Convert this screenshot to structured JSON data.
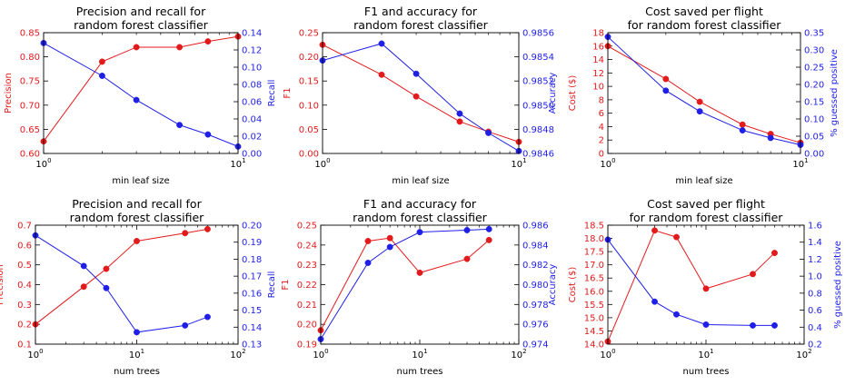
{
  "colors": {
    "left": "#e31a1c",
    "right": "#1f1fe8",
    "axis": "#000000"
  },
  "chart_data": [
    {
      "type": "line",
      "title": [
        "Precision and recall for",
        "random forest classifier"
      ],
      "xlabel": "min leaf size",
      "xscale": "log",
      "xlim": [
        1,
        10
      ],
      "xticks": [
        {
          "v": 1,
          "base": "10",
          "exp": "0"
        },
        {
          "v": 10,
          "base": "10",
          "exp": "1"
        }
      ],
      "y_left": {
        "label": "Precision",
        "lim": [
          0.6,
          0.85
        ],
        "ticks": [
          "0.60",
          "0.65",
          "0.70",
          "0.75",
          "0.80",
          "0.85"
        ]
      },
      "y_right": {
        "label": "Recall",
        "lim": [
          0.0,
          0.14
        ],
        "ticks": [
          "0.00",
          "0.02",
          "0.04",
          "0.06",
          "0.08",
          "0.10",
          "0.12",
          "0.14"
        ]
      },
      "series": [
        {
          "axis": "left",
          "x": [
            1,
            2,
            3,
            5,
            7,
            10
          ],
          "y": [
            0.625,
            0.79,
            0.82,
            0.82,
            0.832,
            0.842
          ]
        },
        {
          "axis": "right",
          "x": [
            1,
            2,
            3,
            5,
            7,
            10
          ],
          "y": [
            0.128,
            0.09,
            0.062,
            0.033,
            0.022,
            0.008
          ]
        }
      ]
    },
    {
      "type": "line",
      "title": [
        "F1 and accuracy for",
        "random forest classifier"
      ],
      "xlabel": "min leaf size",
      "xscale": "log",
      "xlim": [
        1,
        10
      ],
      "xticks": [
        {
          "v": 1,
          "base": "10",
          "exp": "0"
        },
        {
          "v": 10,
          "base": "10",
          "exp": "1"
        }
      ],
      "y_left": {
        "label": "F1",
        "lim": [
          0.0,
          0.25
        ],
        "ticks": [
          "0.00",
          "0.05",
          "0.10",
          "0.15",
          "0.20",
          "0.25"
        ]
      },
      "y_right": {
        "label": "Accuracy",
        "lim": [
          0.9846,
          0.9856
        ],
        "ticks": [
          "0.9846",
          "0.9848",
          "0.9850",
          "0.9852",
          "0.9854",
          "0.9856"
        ]
      },
      "series": [
        {
          "axis": "left",
          "x": [
            1,
            2,
            3,
            5,
            7,
            10
          ],
          "y": [
            0.225,
            0.163,
            0.118,
            0.066,
            0.045,
            0.024
          ]
        },
        {
          "axis": "right",
          "x": [
            1,
            2,
            3,
            5,
            7,
            10
          ],
          "y": [
            0.98537,
            0.98551,
            0.98526,
            0.98493,
            0.98477,
            0.98462
          ]
        }
      ]
    },
    {
      "type": "line",
      "title": [
        "Cost saved per flight",
        "for random forest classifier"
      ],
      "xlabel": "min leaf size",
      "xscale": "log",
      "xlim": [
        1,
        10
      ],
      "xticks": [
        {
          "v": 1,
          "base": "10",
          "exp": "0"
        },
        {
          "v": 10,
          "base": "10",
          "exp": "1"
        }
      ],
      "y_left": {
        "label": "Cost ($)",
        "lim": [
          0,
          18
        ],
        "ticks": [
          "0",
          "2",
          "4",
          "6",
          "8",
          "10",
          "12",
          "14",
          "16",
          "18"
        ]
      },
      "y_right": {
        "label": "% guessed positive",
        "lim": [
          0.0,
          0.35
        ],
        "ticks": [
          "0.00",
          "0.05",
          "0.10",
          "0.15",
          "0.20",
          "0.25",
          "0.30",
          "0.35"
        ]
      },
      "series": [
        {
          "axis": "left",
          "x": [
            1,
            2,
            3,
            5,
            7,
            10
          ],
          "y": [
            16.0,
            11.1,
            7.7,
            4.3,
            2.9,
            1.6
          ]
        },
        {
          "axis": "right",
          "x": [
            1,
            2,
            3,
            5,
            7,
            10
          ],
          "y": [
            0.338,
            0.182,
            0.122,
            0.067,
            0.045,
            0.025
          ]
        }
      ]
    },
    {
      "type": "line",
      "title": [
        "Precision and recall for",
        "random forest classifier"
      ],
      "xlabel": "num trees",
      "xscale": "log",
      "xlim": [
        1,
        100
      ],
      "xticks": [
        {
          "v": 1,
          "base": "10",
          "exp": "0"
        },
        {
          "v": 10,
          "base": "10",
          "exp": "1"
        },
        {
          "v": 100,
          "base": "10",
          "exp": "2"
        }
      ],
      "y_left": {
        "label": "Precision",
        "lim": [
          0.1,
          0.7
        ],
        "ticks": [
          "0.1",
          "0.2",
          "0.3",
          "0.4",
          "0.5",
          "0.6",
          "0.7"
        ]
      },
      "y_right": {
        "label": "Recall",
        "lim": [
          0.13,
          0.2
        ],
        "ticks": [
          "0.13",
          "0.14",
          "0.15",
          "0.16",
          "0.17",
          "0.18",
          "0.19",
          "0.20"
        ]
      },
      "series": [
        {
          "axis": "left",
          "x": [
            1,
            3,
            5,
            10,
            30,
            50
          ],
          "y": [
            0.2,
            0.39,
            0.48,
            0.62,
            0.66,
            0.68
          ]
        },
        {
          "axis": "right",
          "x": [
            1,
            3,
            5,
            10,
            30,
            50
          ],
          "y": [
            0.194,
            0.176,
            0.163,
            0.137,
            0.141,
            0.146
          ]
        }
      ]
    },
    {
      "type": "line",
      "title": [
        "F1 and accuracy for",
        "random forest classifier"
      ],
      "xlabel": "num trees",
      "xscale": "log",
      "xlim": [
        1,
        100
      ],
      "xticks": [
        {
          "v": 1,
          "base": "10",
          "exp": "0"
        },
        {
          "v": 10,
          "base": "10",
          "exp": "1"
        },
        {
          "v": 100,
          "base": "10",
          "exp": "2"
        }
      ],
      "y_left": {
        "label": "F1",
        "lim": [
          0.19,
          0.25
        ],
        "ticks": [
          "0.19",
          "0.20",
          "0.21",
          "0.22",
          "0.23",
          "0.24",
          "0.25"
        ]
      },
      "y_right": {
        "label": "Accuracy",
        "lim": [
          0.974,
          0.986
        ],
        "ticks": [
          "0.974",
          "0.976",
          "0.978",
          "0.980",
          "0.982",
          "0.984",
          "0.986"
        ]
      },
      "series": [
        {
          "axis": "left",
          "x": [
            1,
            3,
            5,
            10,
            30,
            50
          ],
          "y": [
            0.197,
            0.242,
            0.2435,
            0.226,
            0.233,
            0.2425
          ]
        },
        {
          "axis": "right",
          "x": [
            1,
            3,
            5,
            10,
            30,
            50
          ],
          "y": [
            0.9745,
            0.9822,
            0.9838,
            0.9853,
            0.9855,
            0.9856
          ]
        }
      ]
    },
    {
      "type": "line",
      "title": [
        "Cost saved per flight",
        "for random forest classifier"
      ],
      "xlabel": "num trees",
      "xscale": "log",
      "xlim": [
        1,
        100
      ],
      "xticks": [
        {
          "v": 1,
          "base": "10",
          "exp": "0"
        },
        {
          "v": 10,
          "base": "10",
          "exp": "1"
        },
        {
          "v": 100,
          "base": "10",
          "exp": "2"
        }
      ],
      "y_left": {
        "label": "Cost ($)",
        "lim": [
          14.0,
          18.5
        ],
        "ticks": [
          "14.0",
          "14.5",
          "15.0",
          "15.5",
          "16.0",
          "16.5",
          "17.0",
          "17.5",
          "18.0",
          "18.5"
        ]
      },
      "y_right": {
        "label": "% guessed positive",
        "lim": [
          0.2,
          1.6
        ],
        "ticks": [
          "0.2",
          "0.4",
          "0.6",
          "0.8",
          "1.0",
          "1.2",
          "1.4",
          "1.6"
        ]
      },
      "series": [
        {
          "axis": "left",
          "x": [
            1,
            3,
            5,
            10,
            30,
            50
          ],
          "y": [
            14.1,
            18.3,
            18.05,
            16.1,
            16.65,
            17.45
          ]
        },
        {
          "axis": "right",
          "x": [
            1,
            3,
            5,
            10,
            30,
            50
          ],
          "y": [
            1.43,
            0.7,
            0.55,
            0.43,
            0.42,
            0.42
          ]
        }
      ]
    }
  ]
}
